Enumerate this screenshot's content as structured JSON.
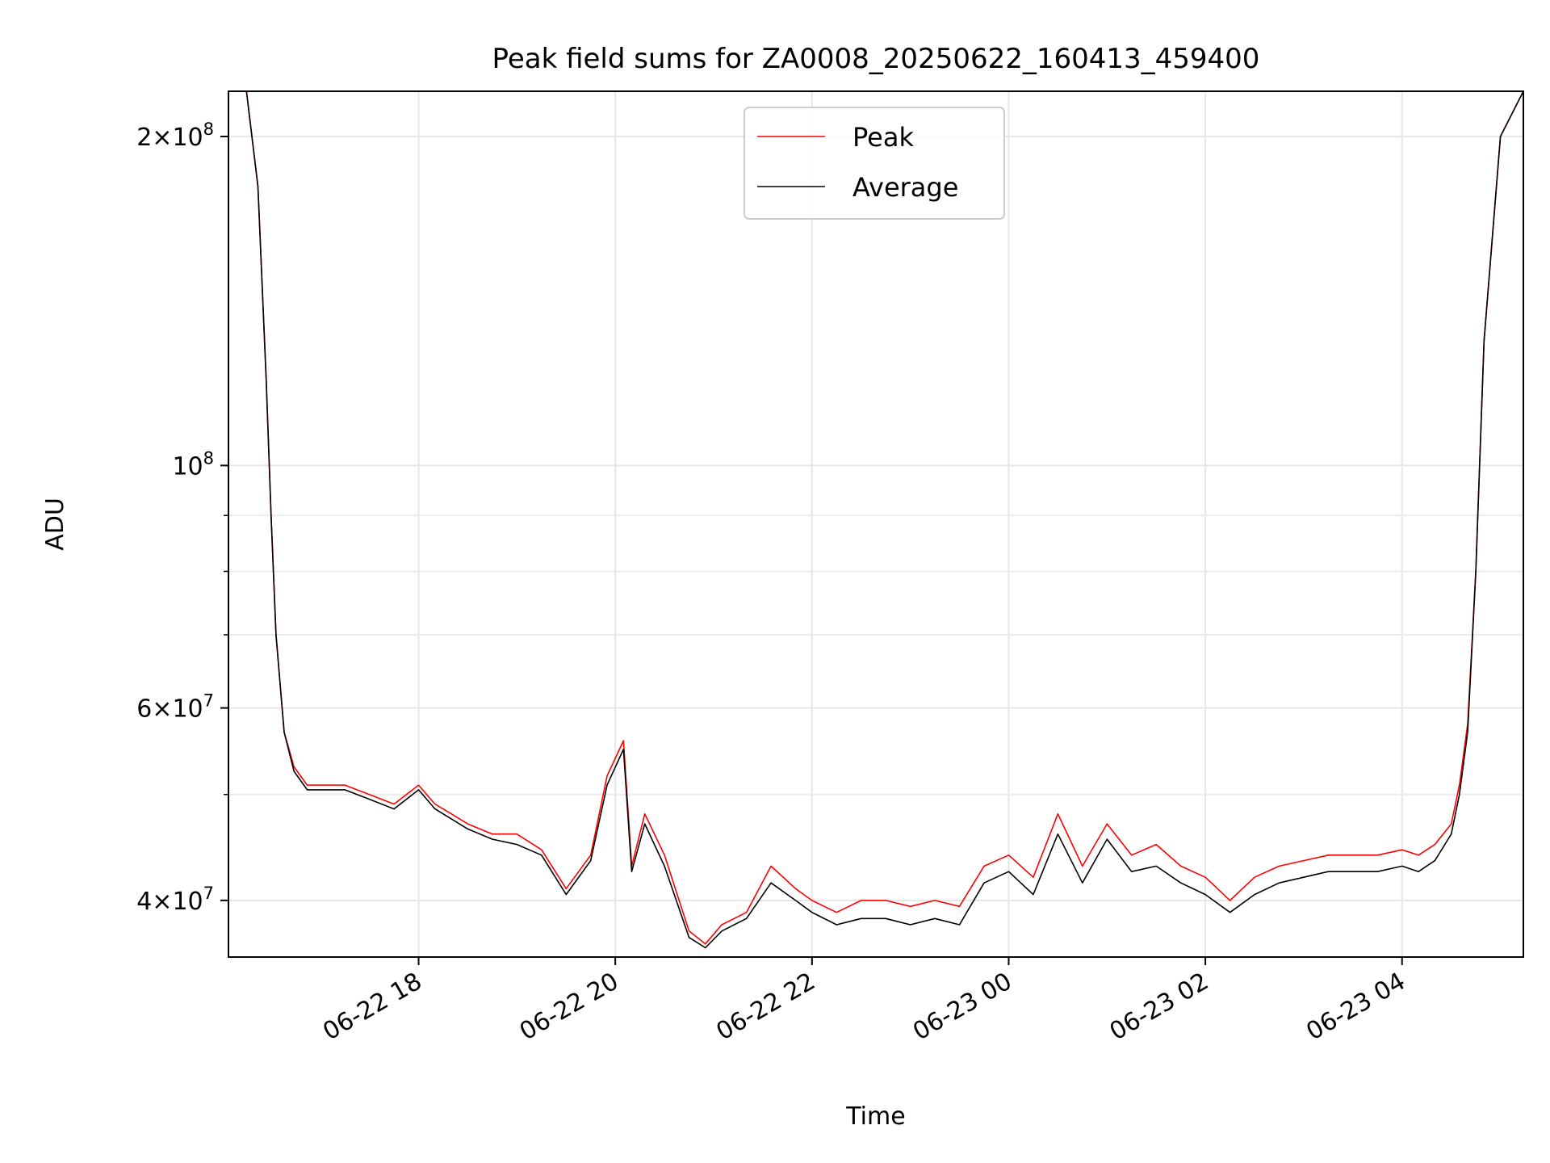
{
  "chart_data": {
    "type": "line",
    "title": "Peak field sums for ZA0008_20250622_160413_459400",
    "xlabel": "Time",
    "ylabel": "ADU",
    "y_scale": "log",
    "grid": true,
    "legend_position": "top-center",
    "xlim": [
      "2025-06-22T16:04",
      "2025-06-23T05:14"
    ],
    "ylim": [
      35500000,
      220000000
    ],
    "x_ticks": [
      {
        "t": "2025-06-22T18:00",
        "label": "06-22 18"
      },
      {
        "t": "2025-06-22T20:00",
        "label": "06-22 20"
      },
      {
        "t": "2025-06-22T22:00",
        "label": "06-22 22"
      },
      {
        "t": "2025-06-23T00:00",
        "label": "06-23 00"
      },
      {
        "t": "2025-06-23T02:00",
        "label": "06-23 02"
      },
      {
        "t": "2025-06-23T04:00",
        "label": "06-23 04"
      }
    ],
    "y_ticks": [
      {
        "value": 40000000,
        "base": "4",
        "exp": "7"
      },
      {
        "value": 60000000,
        "base": "6",
        "exp": "7"
      },
      {
        "value": 100000000,
        "base": "",
        "exp": "8"
      },
      {
        "value": 200000000,
        "base": "2",
        "exp": "8"
      }
    ],
    "y_minor_ticks": [
      50000000,
      70000000,
      80000000,
      90000000
    ],
    "series": [
      {
        "name": "Peak",
        "color": "#ff0000",
        "x": [
          "2025-06-22T16:04",
          "2025-06-22T16:15",
          "2025-06-22T16:22",
          "2025-06-22T16:27",
          "2025-06-22T16:30",
          "2025-06-22T16:33",
          "2025-06-22T16:38",
          "2025-06-22T16:44",
          "2025-06-22T16:52",
          "2025-06-22T17:00",
          "2025-06-22T17:15",
          "2025-06-22T17:30",
          "2025-06-22T17:45",
          "2025-06-22T18:00",
          "2025-06-22T18:10",
          "2025-06-22T18:20",
          "2025-06-22T18:30",
          "2025-06-22T18:45",
          "2025-06-22T19:00",
          "2025-06-22T19:15",
          "2025-06-22T19:30",
          "2025-06-22T19:45",
          "2025-06-22T19:55",
          "2025-06-22T20:05",
          "2025-06-22T20:10",
          "2025-06-22T20:18",
          "2025-06-22T20:30",
          "2025-06-22T20:45",
          "2025-06-22T20:55",
          "2025-06-22T21:05",
          "2025-06-22T21:20",
          "2025-06-22T21:35",
          "2025-06-22T21:50",
          "2025-06-22T22:00",
          "2025-06-22T22:15",
          "2025-06-22T22:30",
          "2025-06-22T22:45",
          "2025-06-22T23:00",
          "2025-06-22T23:15",
          "2025-06-22T23:30",
          "2025-06-22T23:45",
          "2025-06-23T00:00",
          "2025-06-23T00:15",
          "2025-06-23T00:30",
          "2025-06-23T00:45",
          "2025-06-23T01:00",
          "2025-06-23T01:15",
          "2025-06-23T01:30",
          "2025-06-23T01:45",
          "2025-06-23T02:00",
          "2025-06-23T02:15",
          "2025-06-23T02:30",
          "2025-06-23T02:45",
          "2025-06-23T03:00",
          "2025-06-23T03:15",
          "2025-06-23T03:30",
          "2025-06-23T03:45",
          "2025-06-23T04:00",
          "2025-06-23T04:10",
          "2025-06-23T04:20",
          "2025-06-23T04:30",
          "2025-06-23T04:35",
          "2025-06-23T04:40",
          "2025-06-23T04:45",
          "2025-06-23T04:50",
          "2025-06-23T05:00",
          "2025-06-23T05:14"
        ],
        "y": [
          220000000,
          220000000,
          180000000,
          120000000,
          90000000,
          70000000,
          57000000,
          53000000,
          51000000,
          51000000,
          51000000,
          50000000,
          49000000,
          51000000,
          49000000,
          48000000,
          47000000,
          46000000,
          46000000,
          44500000,
          41000000,
          44000000,
          52000000,
          56000000,
          43000000,
          48000000,
          44000000,
          37500000,
          36500000,
          38000000,
          39000000,
          43000000,
          41000000,
          40000000,
          39000000,
          40000000,
          40000000,
          39500000,
          40000000,
          39500000,
          43000000,
          44000000,
          42000000,
          48000000,
          43000000,
          47000000,
          44000000,
          45000000,
          43000000,
          42000000,
          40000000,
          42000000,
          43000000,
          43500000,
          44000000,
          44000000,
          44000000,
          44500000,
          44000000,
          45000000,
          47000000,
          51000000,
          58000000,
          80000000,
          130000000,
          200000000,
          220000000
        ]
      },
      {
        "name": "Average",
        "color": "#000000",
        "x": [
          "2025-06-22T16:04",
          "2025-06-22T16:15",
          "2025-06-22T16:22",
          "2025-06-22T16:27",
          "2025-06-22T16:30",
          "2025-06-22T16:33",
          "2025-06-22T16:38",
          "2025-06-22T16:44",
          "2025-06-22T16:52",
          "2025-06-22T17:00",
          "2025-06-22T17:15",
          "2025-06-22T17:30",
          "2025-06-22T17:45",
          "2025-06-22T18:00",
          "2025-06-22T18:10",
          "2025-06-22T18:20",
          "2025-06-22T18:30",
          "2025-06-22T18:45",
          "2025-06-22T19:00",
          "2025-06-22T19:15",
          "2025-06-22T19:30",
          "2025-06-22T19:45",
          "2025-06-22T19:55",
          "2025-06-22T20:05",
          "2025-06-22T20:10",
          "2025-06-22T20:18",
          "2025-06-22T20:30",
          "2025-06-22T20:45",
          "2025-06-22T20:55",
          "2025-06-22T21:05",
          "2025-06-22T21:20",
          "2025-06-22T21:35",
          "2025-06-22T21:50",
          "2025-06-22T22:00",
          "2025-06-22T22:15",
          "2025-06-22T22:30",
          "2025-06-22T22:45",
          "2025-06-22T23:00",
          "2025-06-22T23:15",
          "2025-06-22T23:30",
          "2025-06-22T23:45",
          "2025-06-23T00:00",
          "2025-06-23T00:15",
          "2025-06-23T00:30",
          "2025-06-23T00:45",
          "2025-06-23T01:00",
          "2025-06-23T01:15",
          "2025-06-23T01:30",
          "2025-06-23T01:45",
          "2025-06-23T02:00",
          "2025-06-23T02:15",
          "2025-06-23T02:30",
          "2025-06-23T02:45",
          "2025-06-23T03:00",
          "2025-06-23T03:15",
          "2025-06-23T03:30",
          "2025-06-23T03:45",
          "2025-06-23T04:00",
          "2025-06-23T04:10",
          "2025-06-23T04:20",
          "2025-06-23T04:30",
          "2025-06-23T04:35",
          "2025-06-23T04:40",
          "2025-06-23T04:45",
          "2025-06-23T04:50",
          "2025-06-23T05:00",
          "2025-06-23T05:14"
        ],
        "y": [
          220000000,
          220000000,
          180000000,
          120000000,
          90000000,
          70000000,
          57000000,
          52500000,
          50500000,
          50500000,
          50500000,
          49500000,
          48500000,
          50500000,
          48500000,
          47500000,
          46500000,
          45500000,
          45000000,
          44000000,
          40500000,
          43500000,
          51000000,
          55000000,
          42500000,
          47000000,
          43000000,
          37000000,
          36200000,
          37500000,
          38500000,
          41500000,
          40000000,
          39000000,
          38000000,
          38500000,
          38500000,
          38000000,
          38500000,
          38000000,
          41500000,
          42500000,
          40500000,
          46000000,
          41500000,
          45500000,
          42500000,
          43000000,
          41500000,
          40500000,
          39000000,
          40500000,
          41500000,
          42000000,
          42500000,
          42500000,
          42500000,
          43000000,
          42500000,
          43500000,
          46000000,
          50000000,
          57000000,
          80000000,
          130000000,
          200000000,
          220000000
        ]
      }
    ]
  }
}
